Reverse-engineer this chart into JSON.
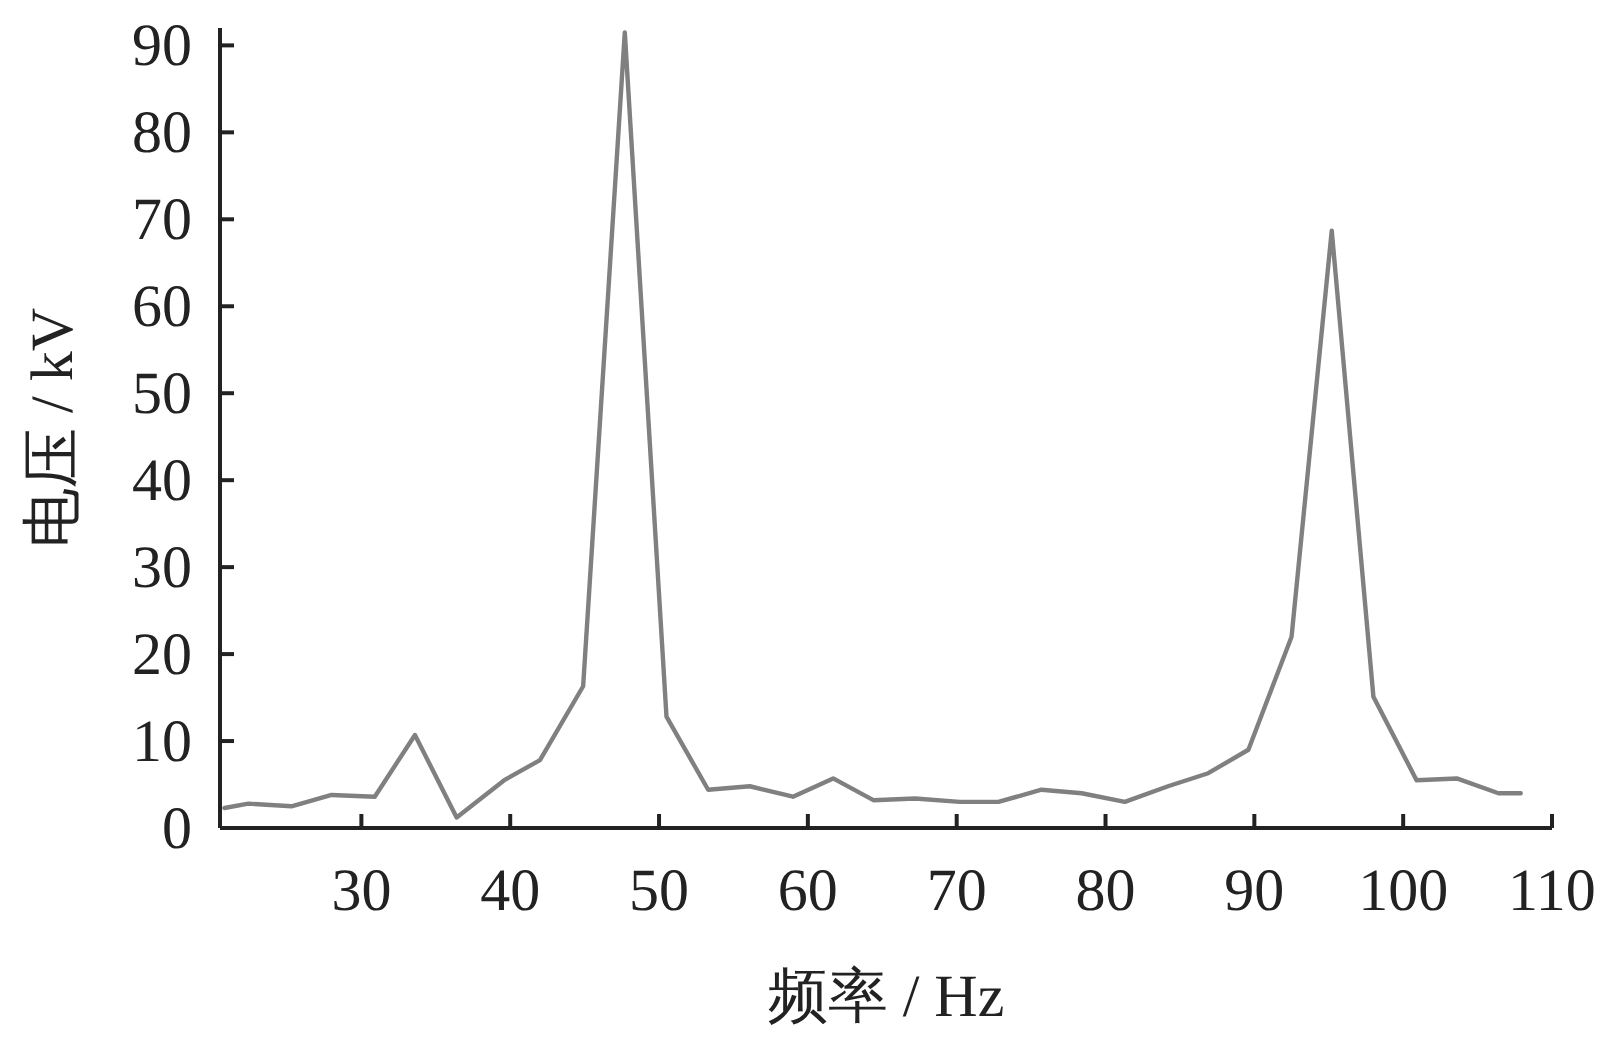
{
  "chart_data": {
    "type": "line",
    "xlabel": "频率 / Hz",
    "ylabel": "电压 / kV",
    "xlim": [
      20.5,
      110
    ],
    "xticks": [
      30,
      40,
      50,
      60,
      70,
      80,
      90,
      100,
      110
    ],
    "ylim": [
      0,
      92
    ],
    "yticks": [
      {
        "value": 0,
        "label": "0"
      },
      10,
      20,
      30,
      40,
      50,
      60,
      70,
      80,
      90
    ],
    "grid": false,
    "marker": "none",
    "line_style": "solid",
    "series": [
      {
        "color": "#808080",
        "x": [
          20.8,
          22.4,
          25.3,
          28.0,
          30.9,
          33.6,
          36.4,
          39.6,
          42.0,
          44.9,
          47.7,
          50.5,
          53.3,
          56.1,
          59.0,
          61.7,
          64.4,
          67.2,
          70.2,
          72.8,
          75.7,
          78.4,
          81.3,
          84.2,
          86.9,
          89.6,
          92.5,
          95.2,
          98.0,
          100.9,
          103.6,
          106.4,
          107.9
        ],
        "values": [
          2.3,
          2.8,
          2.5,
          3.8,
          3.6,
          10.7,
          1.2,
          5.5,
          7.8,
          16.3,
          91.5,
          12.8,
          4.4,
          4.8,
          3.6,
          5.7,
          3.2,
          3.4,
          3.0,
          3.0,
          4.4,
          4.0,
          3.0,
          4.8,
          6.3,
          9.0,
          22.0,
          68.7,
          15.1,
          5.5,
          5.7,
          4.0,
          4.0
        ]
      }
    ]
  }
}
